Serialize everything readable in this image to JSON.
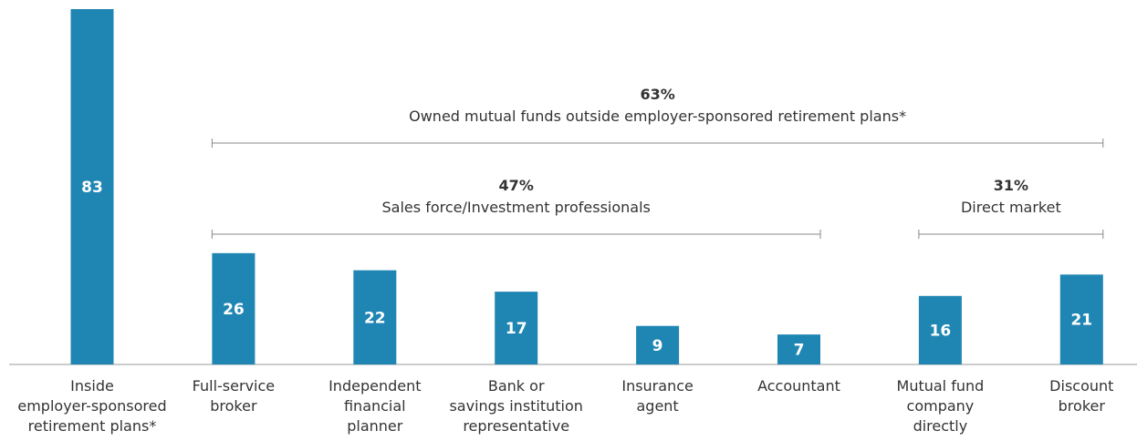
{
  "chart_data": {
    "type": "bar",
    "categories": [
      "Inside\nemployer-sponsored\nretirement plans*",
      "Full-service\nbroker",
      "Independent\nfinancial\nplanner",
      "Bank or\nsavings institution\nrepresentative",
      "Insurance\nagent",
      "Accountant",
      "Mutual fund\ncompany\ndirectly",
      "Discount\nbroker"
    ],
    "values": [
      83,
      26,
      22,
      17,
      9,
      7,
      16,
      21
    ],
    "color": "#1f86b3",
    "annotations": [
      {
        "label": "63%",
        "text": "Owned mutual funds outside employer-sponsored retirement plans*"
      },
      {
        "label": "47%",
        "text": "Sales force/Investment professionals"
      },
      {
        "label": "31%",
        "text": "Direct market"
      }
    ]
  }
}
